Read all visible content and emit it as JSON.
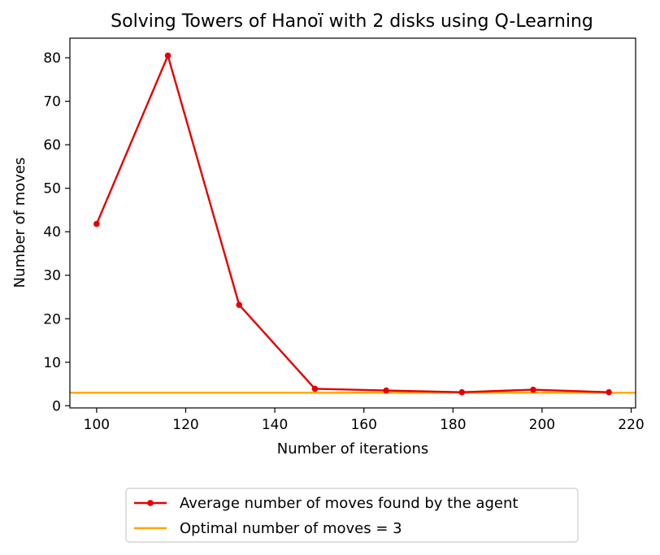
{
  "chart_data": {
    "type": "line",
    "title": "Solving Towers of Hanoï with 2 disks using Q-Learning",
    "xlabel": "Number of iterations",
    "ylabel": "Number of moves",
    "xlim": [
      94,
      221
    ],
    "ylim": [
      -0.5,
      84.5
    ],
    "xticks": [
      100,
      120,
      140,
      160,
      180,
      200,
      220
    ],
    "yticks": [
      0,
      10,
      20,
      30,
      40,
      50,
      60,
      70,
      80
    ],
    "grid": false,
    "legend_position": "below",
    "series": [
      {
        "name": "Average number of moves found by the agent",
        "color": "#e50000",
        "marker": "circle",
        "x": [
          100,
          116,
          132,
          149,
          165,
          182,
          198,
          215
        ],
        "y": [
          41.8,
          80.5,
          23.2,
          3.9,
          3.5,
          3.1,
          3.7,
          3.1
        ]
      },
      {
        "name": "Optimal number of moves = 3",
        "color": "#ffa500",
        "type": "hline",
        "y": 3
      }
    ]
  }
}
